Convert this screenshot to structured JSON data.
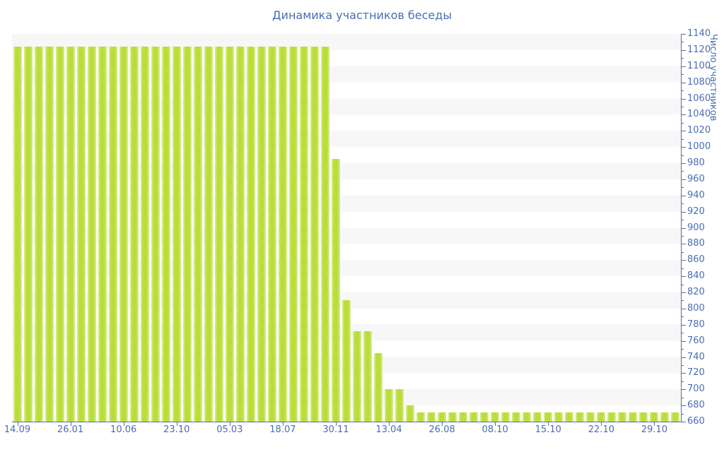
{
  "title": "Динамика участников беседы",
  "colors": {
    "bar_core": "#b9de39",
    "bar_edge_highlight": "#dcee9a",
    "axis_line": "#5a6e9b",
    "text_blue": "#4a6db4",
    "stripe_gray": "#f7f7f7",
    "stripe_white": "#ffffff",
    "background": "#ffffff"
  },
  "chart_data": {
    "type": "bar",
    "title": "Динамика участников беседы",
    "xlabel": "",
    "ylabel": "Число участников",
    "ylim": [
      660,
      1140
    ],
    "y_tick_step": 20,
    "y_minor_tick_step": 10,
    "y_ticks": [
      660,
      680,
      700,
      720,
      740,
      760,
      780,
      800,
      820,
      840,
      860,
      880,
      900,
      920,
      940,
      960,
      980,
      1000,
      1020,
      1040,
      1060,
      1080,
      1100,
      1120,
      1140
    ],
    "x_tick_labels": [
      "14.09",
      "26.01",
      "10.06",
      "23.10",
      "05.03",
      "18.07",
      "30.11",
      "13.04",
      "26.08",
      "08.10",
      "15.10",
      "22.10",
      "29.10"
    ],
    "x_tick_every": 5,
    "grid": "alternating horizontal bands, no gridlines",
    "legend_position": "none",
    "values": [
      1124,
      1124,
      1124,
      1124,
      1124,
      1124,
      1124,
      1124,
      1124,
      1124,
      1124,
      1124,
      1124,
      1124,
      1124,
      1124,
      1124,
      1124,
      1124,
      1124,
      1124,
      1124,
      1124,
      1124,
      1124,
      1124,
      1124,
      1124,
      1124,
      1124,
      985,
      810,
      772,
      772,
      745,
      700,
      700,
      680,
      671,
      671,
      671,
      671,
      671,
      671,
      671,
      671,
      671,
      671,
      671,
      671,
      671,
      671,
      671,
      671,
      671,
      671,
      671,
      671,
      671,
      671,
      671,
      671,
      671
    ]
  }
}
